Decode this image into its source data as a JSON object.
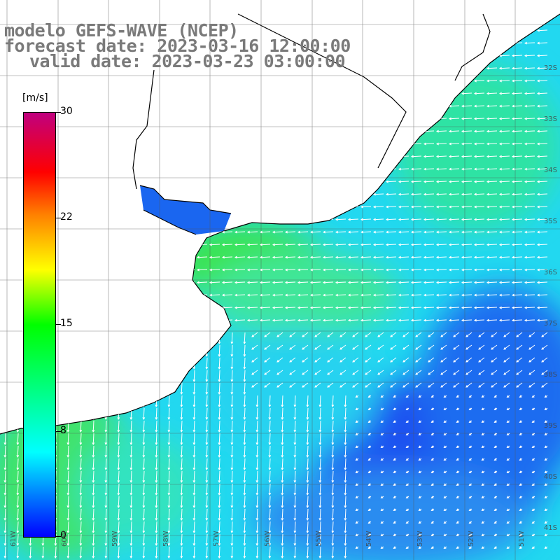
{
  "title": {
    "line1": "modelo GEFS-WAVE (NCEP)",
    "line2": "forecast date: 2023-03-16 12:00:00",
    "line3": "valid date: 2023-03-23 03:00:00"
  },
  "colorbar": {
    "unit": "[m/s]",
    "ticks": [
      "30",
      "22",
      "15",
      "8",
      "0"
    ]
  },
  "lat_labels": [
    "32S",
    "33S",
    "34S",
    "35S",
    "36S",
    "37S",
    "38S",
    "39S",
    "40S",
    "41S"
  ],
  "lon_labels": [
    "61W",
    "60W",
    "59W",
    "58W",
    "57W",
    "56W",
    "55W",
    "54W",
    "53W",
    "52W",
    "51W"
  ],
  "colors": {
    "land": "#ffffff",
    "coast": "#000000",
    "grid": "#555555",
    "arrows": "#ffffff",
    "title_text": "#7a7a7a"
  }
}
